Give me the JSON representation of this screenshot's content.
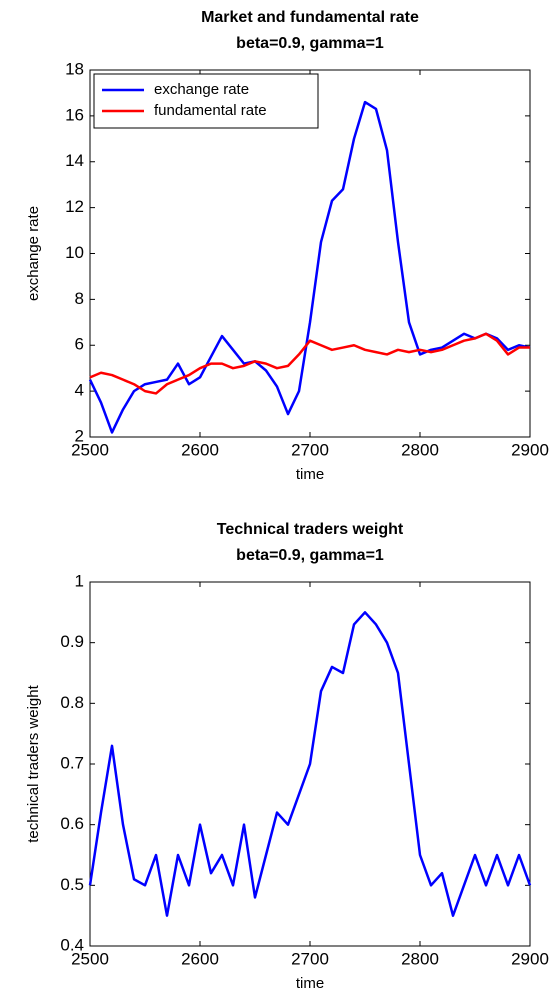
{
  "chart_data": [
    {
      "type": "line",
      "title": "Market and fundamental rate",
      "subtitle": "beta=0.9, gamma=1",
      "xlabel": "time",
      "ylabel": "exchange rate",
      "x": [
        2500,
        2510,
        2520,
        2530,
        2540,
        2550,
        2560,
        2570,
        2580,
        2590,
        2600,
        2610,
        2620,
        2630,
        2640,
        2650,
        2660,
        2670,
        2680,
        2690,
        2700,
        2710,
        2720,
        2730,
        2740,
        2750,
        2760,
        2770,
        2780,
        2790,
        2800,
        2810,
        2820,
        2830,
        2840,
        2850,
        2860,
        2870,
        2880,
        2890,
        2900
      ],
      "series": [
        {
          "name": "exchange rate",
          "color": "#0000ff",
          "values": [
            4.5,
            3.5,
            2.2,
            3.2,
            4.0,
            4.3,
            4.4,
            4.5,
            5.2,
            4.3,
            4.6,
            5.5,
            6.4,
            5.8,
            5.2,
            5.3,
            4.9,
            4.2,
            3.0,
            4.0,
            7.0,
            10.5,
            12.3,
            12.8,
            15.0,
            16.6,
            16.3,
            14.5,
            10.5,
            7.0,
            5.6,
            5.8,
            5.9,
            6.2,
            6.5,
            6.3,
            6.5,
            6.3,
            5.8,
            6.0,
            5.9
          ]
        },
        {
          "name": "fundamental rate",
          "color": "#ff0000",
          "values": [
            4.6,
            4.8,
            4.7,
            4.5,
            4.3,
            4.0,
            3.9,
            4.3,
            4.5,
            4.7,
            5.0,
            5.2,
            5.2,
            5.0,
            5.1,
            5.3,
            5.2,
            5.0,
            5.1,
            5.6,
            6.2,
            6.0,
            5.8,
            5.9,
            6.0,
            5.8,
            5.7,
            5.6,
            5.8,
            5.7,
            5.8,
            5.7,
            5.8,
            6.0,
            6.2,
            6.3,
            6.5,
            6.2,
            5.6,
            5.9,
            5.9
          ]
        }
      ],
      "xlim": [
        2500,
        2900
      ],
      "xticks": [
        2500,
        2600,
        2700,
        2800,
        2900
      ],
      "ylim": [
        2,
        18
      ],
      "yticks": [
        2,
        4,
        6,
        8,
        10,
        12,
        14,
        16,
        18
      ],
      "legend": "upper left"
    },
    {
      "type": "line",
      "title": "Technical traders weight",
      "subtitle": "beta=0.9, gamma=1",
      "xlabel": "time",
      "ylabel": "technical traders weight",
      "x": [
        2500,
        2510,
        2520,
        2530,
        2540,
        2550,
        2560,
        2570,
        2580,
        2590,
        2600,
        2610,
        2620,
        2630,
        2640,
        2650,
        2660,
        2670,
        2680,
        2690,
        2700,
        2710,
        2720,
        2730,
        2740,
        2750,
        2760,
        2770,
        2780,
        2790,
        2800,
        2810,
        2820,
        2830,
        2840,
        2850,
        2860,
        2870,
        2880,
        2890,
        2900
      ],
      "series": [
        {
          "color": "#0000ff",
          "values": [
            0.5,
            0.62,
            0.73,
            0.6,
            0.51,
            0.5,
            0.55,
            0.45,
            0.55,
            0.5,
            0.6,
            0.52,
            0.55,
            0.5,
            0.6,
            0.48,
            0.55,
            0.62,
            0.6,
            0.65,
            0.7,
            0.82,
            0.86,
            0.85,
            0.93,
            0.95,
            0.93,
            0.9,
            0.85,
            0.7,
            0.55,
            0.5,
            0.52,
            0.45,
            0.5,
            0.55,
            0.5,
            0.55,
            0.5,
            0.55,
            0.5
          ]
        }
      ],
      "xlim": [
        2500,
        2900
      ],
      "xticks": [
        2500,
        2600,
        2700,
        2800,
        2900
      ],
      "ylim": [
        0.4,
        1
      ],
      "yticks": [
        0.4,
        0.5,
        0.6,
        0.7,
        0.8,
        0.9,
        1
      ]
    }
  ]
}
